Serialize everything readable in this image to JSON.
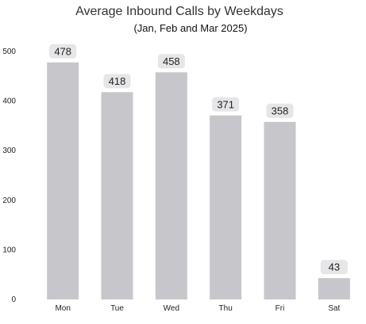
{
  "chart_data": {
    "type": "bar",
    "title": "Average Inbound Calls by Weekdays",
    "subtitle": "(Jan, Feb and Mar 2025)",
    "categories": [
      "Mon",
      "Tue",
      "Wed",
      "Thu",
      "Fri",
      "Sat"
    ],
    "values": [
      478,
      418,
      458,
      371,
      358,
      43
    ],
    "ylim": [
      0,
      500
    ],
    "yticks": [
      0,
      100,
      200,
      300,
      400,
      500
    ],
    "grid": false,
    "legend": "none",
    "bar_color": "#c6c6cb",
    "label_bg_color": "#e6e6e8"
  }
}
